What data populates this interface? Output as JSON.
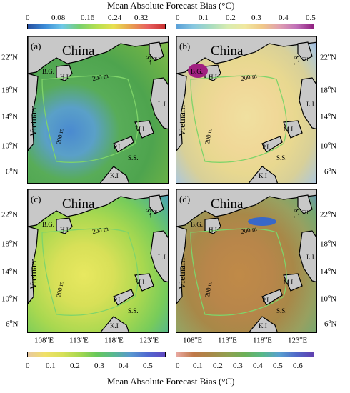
{
  "top_colorbar": {
    "title": "Mean Absolute Forecast Bias (°C)",
    "left_ticks": [
      "0",
      "0.08",
      "0.16",
      "0.24",
      "0.32"
    ],
    "right_ticks": [
      "0",
      "0.1",
      "0.2",
      "0.3",
      "0.4",
      "0.5"
    ]
  },
  "bottom_colorbar": {
    "title": "Mean Absolute Forecast Bias (°C)",
    "left_ticks": [
      "0",
      "0.1",
      "0.2",
      "0.3",
      "0.4",
      "0.5"
    ],
    "right_ticks": [
      "0",
      "0.1",
      "0.2",
      "0.3",
      "0.4",
      "0.5",
      "0.6"
    ]
  },
  "latitudes": [
    "22",
    "18",
    "14",
    "10",
    "6"
  ],
  "longitudes": [
    "108",
    "113",
    "118",
    "123"
  ],
  "panels": [
    {
      "label": "(a)",
      "china": "China",
      "vietnam": "Vietnam",
      "bg": "B.G.",
      "h": "H.I.",
      "contour": "200 m",
      "contour2": "200 m",
      "ls": "L.S.",
      "mi": "M.I.",
      "pi": "P.I.",
      "ss": "S.S.",
      "ki": "K.I",
      "ti": "T.I.",
      "li": "L.I."
    },
    {
      "label": "(b)",
      "china": "China",
      "vietnam": "Vietnam",
      "bg": "B.G.",
      "h": "H.I.",
      "contour": "200 m",
      "contour2": "200 m",
      "ls": "L.S.",
      "mi": "M.I.",
      "pi": "P.I.",
      "ss": "S.S.",
      "ki": "K.I",
      "ti": "T.I.",
      "li": "L.I."
    },
    {
      "label": "(c)",
      "china": "China",
      "vietnam": "Vietnam",
      "bg": "B.G.",
      "h": "H.I.",
      "contour": "200 m",
      "contour2": "200 m",
      "ls": "L.S.",
      "mi": "M.I.",
      "pi": "P.I.",
      "ss": "S.S.",
      "ki": "K.I",
      "ti": "T.I.",
      "li": "L.I."
    },
    {
      "label": "(d)",
      "china": "China",
      "vietnam": "Vietnam",
      "bg": "B.G.",
      "h": "H.I.",
      "contour": "200 m",
      "contour2": "200 m",
      "ls": "L.S.",
      "mi": "M.I.",
      "pi": "P.I.",
      "ss": "S.S.",
      "ki": "K.I",
      "ti": "T.I.",
      "li": "L.I."
    }
  ],
  "colors": {
    "land": "#c8c8c8",
    "contour": "#7fd46a",
    "panel_a": "#4aa84a",
    "panel_b": "#e8d48a",
    "panel_c": "#7fd66a",
    "panel_d": "#b8884a"
  }
}
